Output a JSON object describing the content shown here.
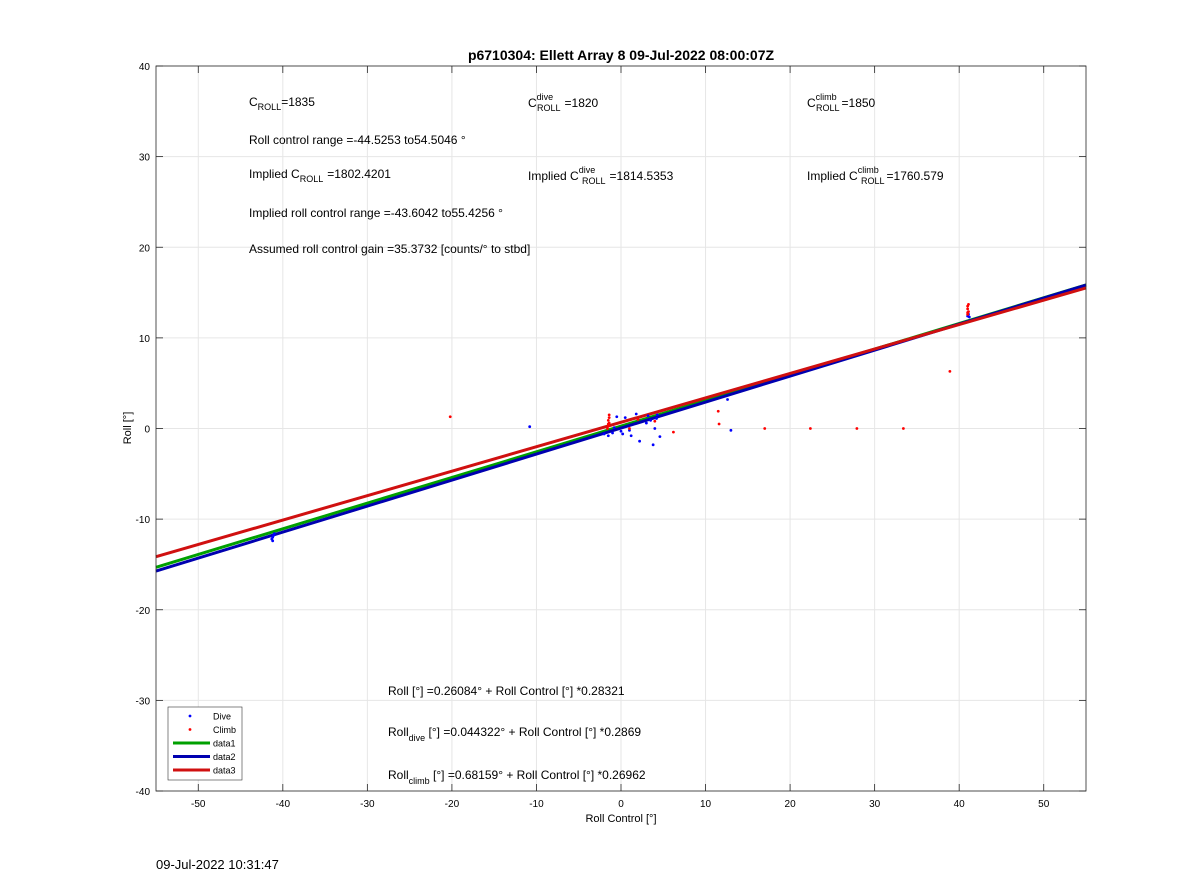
{
  "footer_timestamp": "09-Jul-2022 10:31:47",
  "colors": {
    "dive": "#0000ff",
    "climb": "#ff0000",
    "data1": "#00a000",
    "data2": "#0000b0",
    "data3": "#d01010",
    "grid": "#e6e6e6"
  },
  "annotations": {
    "croll": {
      "base": "C",
      "sub": "ROLL",
      "sup": "",
      "prefix": "",
      "value": "=1835"
    },
    "croll_dive": {
      "base": "C",
      "sub": "ROLL",
      "sup": "dive",
      "prefix": "",
      "value": "=1820"
    },
    "croll_climb": {
      "base": "C",
      "sub": "ROLL",
      "sup": "climb",
      "prefix": "",
      "value": "=1850"
    },
    "roll_range": "Roll control range =-44.5253 to54.5046 °",
    "implied_croll": {
      "prefix": "Implied ",
      "base": "C",
      "sub": "ROLL",
      "sup": "",
      "value": "=1802.4201"
    },
    "implied_croll_dive": {
      "prefix": "Implied ",
      "base": "C",
      "sub": "ROLL",
      "sup": "dive",
      "value": "=1814.5353"
    },
    "implied_croll_climb": {
      "prefix": "Implied ",
      "base": "C",
      "sub": "ROLL",
      "sup": "climb",
      "value": "=1760.579"
    },
    "implied_range": "Implied roll control range =-43.6042 to55.4256 °",
    "gain": "Assumed roll control gain =35.3732 [counts/° to stbd]",
    "fit_all": "Roll [°] =0.26084° + Roll Control [°] *0.28321",
    "fit_dive": {
      "base": "Roll",
      "sub": "dive",
      "rest": " [°] =0.044322° + Roll Control [°] *0.2869"
    },
    "fit_climb": {
      "base": "Roll",
      "sub": "climb",
      "rest": " [°] =0.68159° + Roll Control [°] *0.26962"
    }
  },
  "chart_data": {
    "type": "scatter",
    "title": "p6710304: Ellett Array 8 09-Jul-2022 08:00:07Z",
    "xlabel": "Roll Control [°]",
    "ylabel": "Roll [°]",
    "xlim": [
      -55,
      55
    ],
    "ylim": [
      -40,
      40
    ],
    "xticks": [
      -50,
      -40,
      -30,
      -20,
      -10,
      0,
      10,
      20,
      30,
      40,
      50
    ],
    "yticks": [
      -40,
      -30,
      -20,
      -10,
      0,
      10,
      20,
      30,
      40
    ],
    "grid": true,
    "legend_position": "bottom-left",
    "series": [
      {
        "name": "Dive",
        "kind": "points",
        "points": [
          [
            -41.3,
            -12.2
          ],
          [
            -41.2,
            -12.0
          ],
          [
            -41.1,
            -11.8
          ],
          [
            -41.0,
            -11.6
          ],
          [
            -41.2,
            -12.4
          ],
          [
            -10.8,
            0.2
          ],
          [
            -2.0,
            -0.6
          ],
          [
            -1.5,
            -0.8
          ],
          [
            -1.0,
            -0.5
          ],
          [
            -0.8,
            0.1
          ],
          [
            -0.5,
            1.3
          ],
          [
            0.0,
            -0.3
          ],
          [
            0.2,
            -0.6
          ],
          [
            0.5,
            1.2
          ],
          [
            1.0,
            -0.2
          ],
          [
            1.2,
            -0.8
          ],
          [
            1.8,
            1.6
          ],
          [
            2.2,
            -1.4
          ],
          [
            3.0,
            0.6
          ],
          [
            3.2,
            1.4
          ],
          [
            3.5,
            0.9
          ],
          [
            3.8,
            -1.8
          ],
          [
            4.0,
            0.0
          ],
          [
            4.3,
            1.5
          ],
          [
            4.6,
            -0.9
          ],
          [
            4.2,
            1.1
          ],
          [
            12.6,
            3.2
          ],
          [
            13.0,
            -0.2
          ],
          [
            41.0,
            12.4
          ],
          [
            41.1,
            12.6
          ],
          [
            41.2,
            12.3
          ]
        ]
      },
      {
        "name": "Climb",
        "kind": "points",
        "points": [
          [
            -20.2,
            1.3
          ],
          [
            -1.5,
            0.3
          ],
          [
            -1.4,
            0.6
          ],
          [
            -1.5,
            0.9
          ],
          [
            -1.4,
            1.2
          ],
          [
            -1.6,
            0.0
          ],
          [
            -1.4,
            1.5
          ],
          [
            -1.5,
            0.5
          ],
          [
            1.0,
            0.0
          ],
          [
            2.0,
            1.0
          ],
          [
            4.0,
            0.8
          ],
          [
            6.2,
            -0.4
          ],
          [
            11.5,
            1.9
          ],
          [
            11.6,
            0.5
          ],
          [
            17.0,
            0.0
          ],
          [
            22.4,
            0.0
          ],
          [
            27.9,
            0.0
          ],
          [
            33.4,
            0.0
          ],
          [
            38.9,
            6.3
          ],
          [
            41.0,
            13.5
          ],
          [
            41.0,
            13.2
          ],
          [
            41.1,
            12.9
          ],
          [
            41.0,
            12.6
          ],
          [
            41.1,
            13.7
          ],
          [
            41.0,
            12.8
          ]
        ]
      },
      {
        "name": "data1",
        "kind": "line",
        "intercept": 0.26084,
        "slope": 0.28321
      },
      {
        "name": "data2",
        "kind": "line",
        "intercept": 0.044322,
        "slope": 0.2869
      },
      {
        "name": "data3",
        "kind": "line",
        "intercept": 0.68159,
        "slope": 0.26962
      }
    ]
  }
}
